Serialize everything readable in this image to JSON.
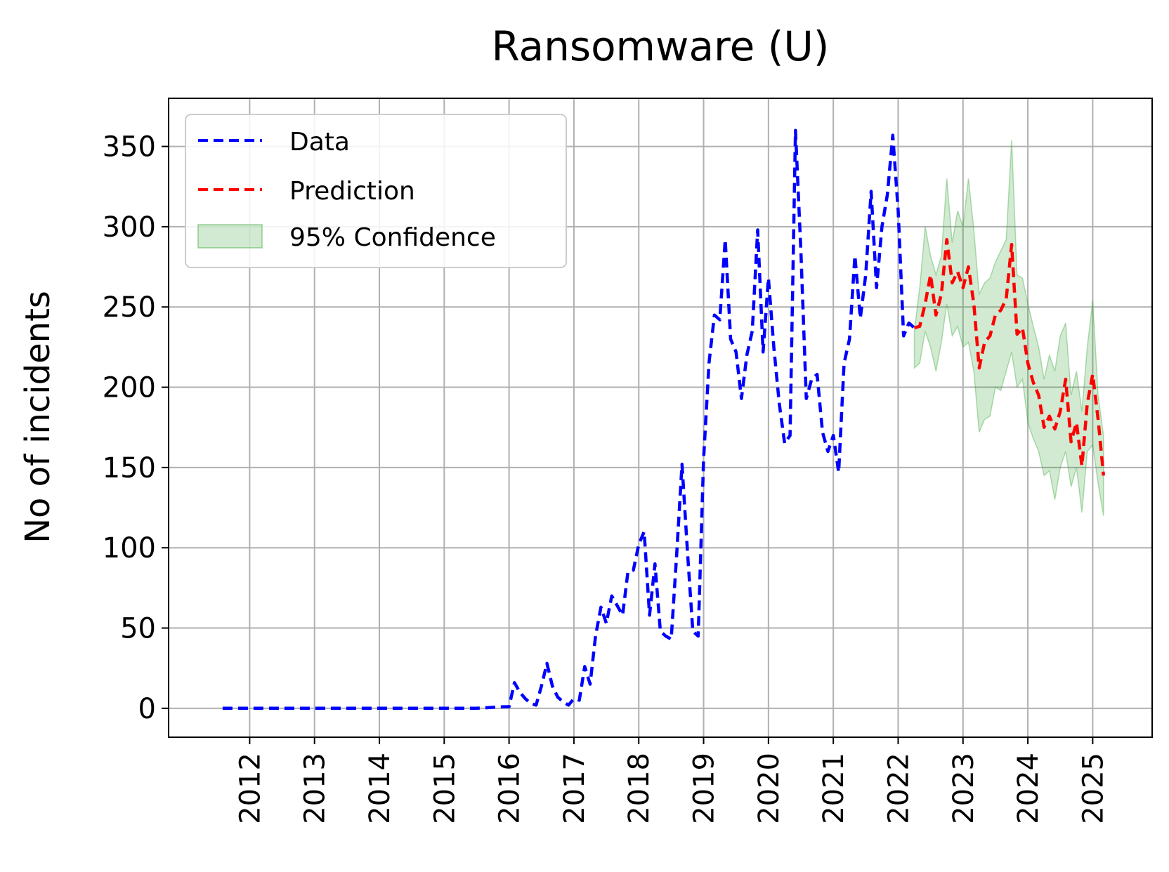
{
  "chart_data": {
    "type": "line",
    "title": "Ransomware (U)",
    "xlabel": "",
    "ylabel": "No of incidents",
    "x_ticks": [
      "2012",
      "2013",
      "2014",
      "2015",
      "2016",
      "2017",
      "2018",
      "2019",
      "2020",
      "2021",
      "2022",
      "2023",
      "2024",
      "2025"
    ],
    "y_ticks": [
      "0",
      "50",
      "100",
      "150",
      "200",
      "250",
      "300",
      "350"
    ],
    "xlim": [
      "2010-10",
      "2025-12"
    ],
    "ylim": [
      -18,
      380
    ],
    "grid": true,
    "legend_position": "top-left",
    "series": [
      {
        "name": "Data",
        "color": "#0000ff",
        "style": "dashed",
        "points": [
          [
            "2011-08",
            0
          ],
          [
            "2012-01",
            0
          ],
          [
            "2012-07",
            0
          ],
          [
            "2013-01",
            0
          ],
          [
            "2013-07",
            0
          ],
          [
            "2014-01",
            0
          ],
          [
            "2014-07",
            0
          ],
          [
            "2015-01",
            0
          ],
          [
            "2015-07",
            0
          ],
          [
            "2015-12",
            1
          ],
          [
            "2016-01",
            1
          ],
          [
            "2016-02",
            16
          ],
          [
            "2016-03",
            10
          ],
          [
            "2016-04",
            6
          ],
          [
            "2016-05",
            3
          ],
          [
            "2016-06",
            2
          ],
          [
            "2016-07",
            14
          ],
          [
            "2016-08",
            28
          ],
          [
            "2016-09",
            14
          ],
          [
            "2016-10",
            7
          ],
          [
            "2016-11",
            4
          ],
          [
            "2016-12",
            2
          ],
          [
            "2017-01",
            6
          ],
          [
            "2017-02",
            5
          ],
          [
            "2017-03",
            26
          ],
          [
            "2017-04",
            15
          ],
          [
            "2017-05",
            45
          ],
          [
            "2017-06",
            63
          ],
          [
            "2017-07",
            53
          ],
          [
            "2017-08",
            70
          ],
          [
            "2017-09",
            64
          ],
          [
            "2017-10",
            58
          ],
          [
            "2017-11",
            85
          ],
          [
            "2017-12",
            86
          ],
          [
            "2018-01",
            102
          ],
          [
            "2018-02",
            110
          ],
          [
            "2018-03",
            58
          ],
          [
            "2018-04",
            90
          ],
          [
            "2018-05",
            48
          ],
          [
            "2018-06",
            45
          ],
          [
            "2018-07",
            43
          ],
          [
            "2018-08",
            95
          ],
          [
            "2018-09",
            152
          ],
          [
            "2018-10",
            98
          ],
          [
            "2018-11",
            48
          ],
          [
            "2018-12",
            45
          ],
          [
            "2019-01",
            155
          ],
          [
            "2019-02",
            215
          ],
          [
            "2019-03",
            245
          ],
          [
            "2019-04",
            242
          ],
          [
            "2019-05",
            292
          ],
          [
            "2019-06",
            230
          ],
          [
            "2019-07",
            222
          ],
          [
            "2019-08",
            193
          ],
          [
            "2019-09",
            220
          ],
          [
            "2019-10",
            235
          ],
          [
            "2019-11",
            298
          ],
          [
            "2019-12",
            222
          ],
          [
            "2020-01",
            268
          ],
          [
            "2020-02",
            225
          ],
          [
            "2020-03",
            190
          ],
          [
            "2020-04",
            165
          ],
          [
            "2020-05",
            170
          ],
          [
            "2020-06",
            360
          ],
          [
            "2020-07",
            285
          ],
          [
            "2020-08",
            193
          ],
          [
            "2020-09",
            205
          ],
          [
            "2020-10",
            208
          ],
          [
            "2020-11",
            172
          ],
          [
            "2020-12",
            160
          ],
          [
            "2021-01",
            170
          ],
          [
            "2021-02",
            147
          ],
          [
            "2021-03",
            215
          ],
          [
            "2021-04",
            230
          ],
          [
            "2021-05",
            282
          ],
          [
            "2021-06",
            243
          ],
          [
            "2021-07",
            270
          ],
          [
            "2021-08",
            322
          ],
          [
            "2021-09",
            262
          ],
          [
            "2021-10",
            300
          ],
          [
            "2021-11",
            320
          ],
          [
            "2021-12",
            357
          ],
          [
            "2022-01",
            310
          ],
          [
            "2022-02",
            232
          ],
          [
            "2022-03",
            240
          ],
          [
            "2022-04",
            237
          ]
        ]
      },
      {
        "name": "Prediction",
        "color": "#ff0000",
        "style": "dashed",
        "points": [
          [
            "2022-04",
            237
          ],
          [
            "2022-05",
            238
          ],
          [
            "2022-06",
            252
          ],
          [
            "2022-07",
            270
          ],
          [
            "2022-08",
            245
          ],
          [
            "2022-09",
            258
          ],
          [
            "2022-10",
            292
          ],
          [
            "2022-11",
            265
          ],
          [
            "2022-12",
            272
          ],
          [
            "2023-01",
            262
          ],
          [
            "2023-02",
            275
          ],
          [
            "2023-03",
            252
          ],
          [
            "2023-04",
            212
          ],
          [
            "2023-05",
            228
          ],
          [
            "2023-06",
            232
          ],
          [
            "2023-07",
            245
          ],
          [
            "2023-08",
            248
          ],
          [
            "2023-09",
            255
          ],
          [
            "2023-10",
            289
          ],
          [
            "2023-11",
            233
          ],
          [
            "2023-12",
            237
          ],
          [
            "2024-01",
            215
          ],
          [
            "2024-02",
            203
          ],
          [
            "2024-03",
            195
          ],
          [
            "2024-04",
            175
          ],
          [
            "2024-05",
            182
          ],
          [
            "2024-06",
            174
          ],
          [
            "2024-07",
            185
          ],
          [
            "2024-08",
            205
          ],
          [
            "2024-09",
            166
          ],
          [
            "2024-10",
            178
          ],
          [
            "2024-11",
            151
          ],
          [
            "2024-12",
            190
          ],
          [
            "2025-01",
            208
          ],
          [
            "2025-02",
            180
          ],
          [
            "2025-03",
            145
          ]
        ]
      },
      {
        "name": "95% Confidence",
        "color": "#2ca02c",
        "type": "band",
        "opacity": 0.22,
        "x": [
          "2022-04",
          "2022-05",
          "2022-06",
          "2022-07",
          "2022-08",
          "2022-09",
          "2022-10",
          "2022-11",
          "2022-12",
          "2023-01",
          "2023-02",
          "2023-03",
          "2023-04",
          "2023-05",
          "2023-06",
          "2023-07",
          "2023-08",
          "2023-09",
          "2023-10",
          "2023-11",
          "2023-12",
          "2024-01",
          "2024-02",
          "2024-03",
          "2024-04",
          "2024-05",
          "2024-06",
          "2024-07",
          "2024-08",
          "2024-09",
          "2024-10",
          "2024-11",
          "2024-12",
          "2025-01",
          "2025-02",
          "2025-03"
        ],
        "upper": [
          235,
          262,
          300,
          282,
          270,
          282,
          330,
          290,
          310,
          300,
          330,
          298,
          258,
          265,
          268,
          278,
          285,
          292,
          354,
          270,
          268,
          252,
          238,
          225,
          205,
          220,
          210,
          232,
          240,
          195,
          210,
          185,
          225,
          254,
          195,
          170
        ],
        "lower": [
          212,
          215,
          235,
          225,
          210,
          228,
          252,
          232,
          238,
          225,
          228,
          210,
          172,
          180,
          182,
          200,
          198,
          210,
          222,
          200,
          205,
          178,
          168,
          160,
          145,
          148,
          130,
          150,
          160,
          138,
          150,
          122,
          160,
          164,
          140,
          120
        ]
      }
    ]
  }
}
